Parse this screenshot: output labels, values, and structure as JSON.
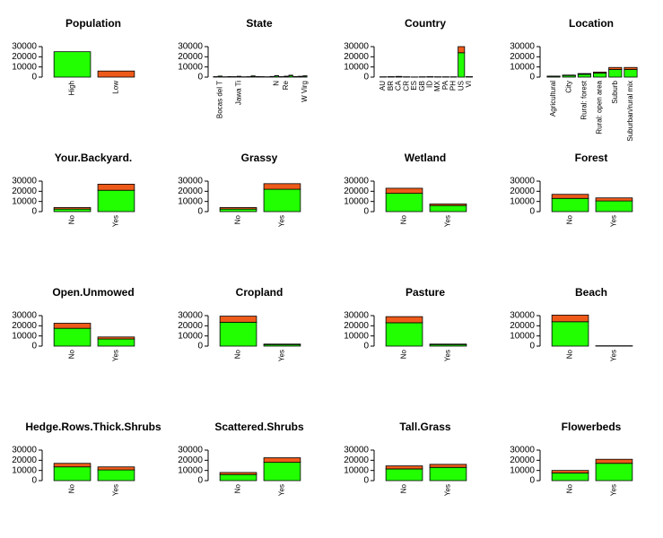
{
  "chart_data": [
    {
      "type": "bar",
      "stacked": true,
      "title": "Population",
      "categories": [
        "High",
        "Low"
      ],
      "series": [
        {
          "color": "#22ff00",
          "values": [
            25000,
            0
          ]
        },
        {
          "color": "#ee5a1a",
          "values": [
            0,
            6000
          ]
        }
      ],
      "ylim": [
        0,
        30000
      ],
      "yticks": [
        0,
        10000,
        20000,
        30000
      ]
    },
    {
      "type": "bar",
      "stacked": true,
      "title": "State",
      "categories": [
        null,
        "Bocas del T",
        null,
        null,
        null,
        "Jawa Ti",
        null,
        null,
        null,
        null,
        null,
        null,
        null,
        "N",
        null,
        "Re",
        null,
        null,
        null,
        "W Virg"
      ],
      "series": [
        {
          "color": "#22ff00",
          "values": [
            300,
            800,
            200,
            400,
            300,
            600,
            200,
            300,
            900,
            400,
            300,
            200,
            500,
            1200,
            300,
            700,
            1500,
            400,
            600,
            1000
          ]
        },
        {
          "color": "#ee5a1a",
          "values": [
            100,
            200,
            50,
            100,
            100,
            200,
            50,
            100,
            300,
            100,
            100,
            50,
            150,
            300,
            100,
            200,
            400,
            100,
            200,
            300
          ]
        }
      ],
      "ylim": [
        0,
        30000
      ],
      "yticks": [
        0,
        10000,
        20000,
        30000
      ]
    },
    {
      "type": "bar",
      "stacked": true,
      "title": "Country",
      "categories": [
        "AU",
        "BR",
        "CA",
        "CR",
        "ES",
        "GB",
        "ID",
        "MX",
        "PA",
        "PH",
        "US",
        "VI"
      ],
      "series": [
        {
          "color": "#22ff00",
          "values": [
            200,
            300,
            500,
            200,
            100,
            200,
            300,
            200,
            200,
            200,
            24000,
            300
          ]
        },
        {
          "color": "#ee5a1a",
          "values": [
            50,
            100,
            200,
            50,
            50,
            50,
            100,
            50,
            50,
            50,
            6000,
            100
          ]
        }
      ],
      "ylim": [
        0,
        30000
      ],
      "yticks": [
        0,
        10000,
        20000,
        30000
      ]
    },
    {
      "type": "bar",
      "stacked": true,
      "title": "Location",
      "categories": [
        "Agricultural",
        "City",
        "Rural: forest",
        "Rural: open area",
        "Suburb",
        "Suburban/rural mix"
      ],
      "series": [
        {
          "color": "#22ff00",
          "values": [
            800,
            1600,
            2800,
            4000,
            7500,
            7500
          ]
        },
        {
          "color": "#ee5a1a",
          "values": [
            200,
            400,
            700,
            1000,
            2000,
            2000
          ]
        }
      ],
      "ylim": [
        0,
        30000
      ],
      "yticks": [
        0,
        10000,
        20000,
        30000
      ]
    },
    {
      "type": "bar",
      "stacked": true,
      "title": "Your.Backyard.",
      "categories": [
        "No",
        "Yes"
      ],
      "series": [
        {
          "color": "#22ff00",
          "values": [
            2500,
            21000
          ]
        },
        {
          "color": "#ee5a1a",
          "values": [
            1500,
            6000
          ]
        }
      ],
      "ylim": [
        0,
        30000
      ],
      "yticks": [
        0,
        10000,
        20000,
        30000
      ]
    },
    {
      "type": "bar",
      "stacked": true,
      "title": "Grassy",
      "categories": [
        "No",
        "Yes"
      ],
      "series": [
        {
          "color": "#22ff00",
          "values": [
            2500,
            22000
          ]
        },
        {
          "color": "#ee5a1a",
          "values": [
            1500,
            5500
          ]
        }
      ],
      "ylim": [
        0,
        30000
      ],
      "yticks": [
        0,
        10000,
        20000,
        30000
      ]
    },
    {
      "type": "bar",
      "stacked": true,
      "title": "Wetland",
      "categories": [
        "No",
        "Yes"
      ],
      "series": [
        {
          "color": "#22ff00",
          "values": [
            18000,
            6000
          ]
        },
        {
          "color": "#ee5a1a",
          "values": [
            5000,
            1500
          ]
        }
      ],
      "ylim": [
        0,
        30000
      ],
      "yticks": [
        0,
        10000,
        20000,
        30000
      ]
    },
    {
      "type": "bar",
      "stacked": true,
      "title": "Forest",
      "categories": [
        "No",
        "Yes"
      ],
      "series": [
        {
          "color": "#22ff00",
          "values": [
            13000,
            10500
          ]
        },
        {
          "color": "#ee5a1a",
          "values": [
            4000,
            3000
          ]
        }
      ],
      "ylim": [
        0,
        30000
      ],
      "yticks": [
        0,
        10000,
        20000,
        30000
      ]
    },
    {
      "type": "bar",
      "stacked": true,
      "title": "Open.Unmowed",
      "categories": [
        "No",
        "Yes"
      ],
      "series": [
        {
          "color": "#22ff00",
          "values": [
            17500,
            7000
          ]
        },
        {
          "color": "#ee5a1a",
          "values": [
            5000,
            2000
          ]
        }
      ],
      "ylim": [
        0,
        30000
      ],
      "yticks": [
        0,
        10000,
        20000,
        30000
      ]
    },
    {
      "type": "bar",
      "stacked": true,
      "title": "Cropland",
      "categories": [
        "No",
        "Yes"
      ],
      "series": [
        {
          "color": "#22ff00",
          "values": [
            23500,
            1500
          ]
        },
        {
          "color": "#ee5a1a",
          "values": [
            6000,
            500
          ]
        }
      ],
      "ylim": [
        0,
        30000
      ],
      "yticks": [
        0,
        10000,
        20000,
        30000
      ]
    },
    {
      "type": "bar",
      "stacked": true,
      "title": "Pasture",
      "categories": [
        "No",
        "Yes"
      ],
      "series": [
        {
          "color": "#22ff00",
          "values": [
            23000,
            1500
          ]
        },
        {
          "color": "#ee5a1a",
          "values": [
            6000,
            500
          ]
        }
      ],
      "ylim": [
        0,
        30000
      ],
      "yticks": [
        0,
        10000,
        20000,
        30000
      ]
    },
    {
      "type": "bar",
      "stacked": true,
      "title": "Beach",
      "categories": [
        "No",
        "Yes"
      ],
      "series": [
        {
          "color": "#22ff00",
          "values": [
            24000,
            200
          ]
        },
        {
          "color": "#ee5a1a",
          "values": [
            6500,
            100
          ]
        }
      ],
      "ylim": [
        0,
        30000
      ],
      "yticks": [
        0,
        10000,
        20000,
        30000
      ]
    },
    {
      "type": "bar",
      "stacked": true,
      "title": "Hedge.Rows.Thick.Shrubs",
      "categories": [
        "No",
        "Yes"
      ],
      "series": [
        {
          "color": "#22ff00",
          "values": [
            13500,
            10500
          ]
        },
        {
          "color": "#ee5a1a",
          "values": [
            3500,
            3000
          ]
        }
      ],
      "ylim": [
        0,
        30000
      ],
      "yticks": [
        0,
        10000,
        20000,
        30000
      ]
    },
    {
      "type": "bar",
      "stacked": true,
      "title": "Scattered.Shrubs",
      "categories": [
        "No",
        "Yes"
      ],
      "series": [
        {
          "color": "#22ff00",
          "values": [
            6000,
            18000
          ]
        },
        {
          "color": "#ee5a1a",
          "values": [
            2000,
            4500
          ]
        }
      ],
      "ylim": [
        0,
        30000
      ],
      "yticks": [
        0,
        10000,
        20000,
        30000
      ]
    },
    {
      "type": "bar",
      "stacked": true,
      "title": "Tall.Grass",
      "categories": [
        "No",
        "Yes"
      ],
      "series": [
        {
          "color": "#22ff00",
          "values": [
            11500,
            13000
          ]
        },
        {
          "color": "#ee5a1a",
          "values": [
            3000,
            3000
          ]
        }
      ],
      "ylim": [
        0,
        30000
      ],
      "yticks": [
        0,
        10000,
        20000,
        30000
      ]
    },
    {
      "type": "bar",
      "stacked": true,
      "title": "Flowerbeds",
      "categories": [
        "No",
        "Yes"
      ],
      "series": [
        {
          "color": "#22ff00",
          "values": [
            7500,
            17000
          ]
        },
        {
          "color": "#ee5a1a",
          "values": [
            2500,
            4000
          ]
        }
      ],
      "ylim": [
        0,
        30000
      ],
      "yticks": [
        0,
        10000,
        20000,
        30000
      ]
    }
  ]
}
